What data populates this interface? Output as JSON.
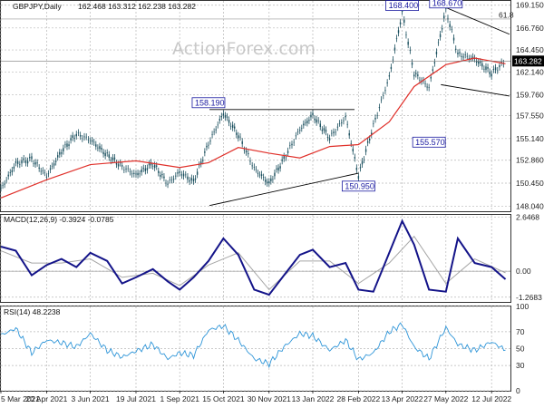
{
  "chart_data": [
    {
      "type": "line",
      "title": "GBPJPY,Daily",
      "ohlc": "162.468 163.312 162.238 163.282",
      "watermark": "ActionForex.com",
      "series": [
        {
          "x": [
            "2021-03-05",
            "2021-03-20",
            "2021-04-05",
            "2021-04-20",
            "2021-05-05",
            "2021-05-20",
            "2021-06-03",
            "2021-06-20",
            "2021-07-05",
            "2021-07-19",
            "2021-08-05",
            "2021-08-20",
            "2021-09-01",
            "2021-09-15",
            "2021-09-30",
            "2021-10-15",
            "2021-10-30",
            "2021-11-15",
            "2021-11-30",
            "2021-12-15",
            "2021-12-31",
            "2022-01-13",
            "2022-01-30",
            "2022-02-15",
            "2022-02-28",
            "2022-03-15",
            "2022-03-31",
            "2022-04-13",
            "2022-04-25",
            "2022-05-10",
            "2022-05-27",
            "2022-06-08",
            "2022-06-25",
            "2022-07-12",
            "2022-07-26"
          ],
          "values": [
            149.8,
            152.5,
            153.0,
            151.2,
            153.8,
            155.6,
            155.0,
            153.4,
            152.2,
            151.3,
            152.5,
            150.4,
            151.6,
            150.6,
            154.6,
            157.8,
            155.5,
            152.0,
            150.4,
            153.0,
            156.1,
            157.6,
            155.2,
            157.4,
            151.2,
            156.5,
            161.6,
            168.4,
            162.0,
            160.5,
            168.7,
            164.0,
            163.5,
            162.0,
            163.282
          ]
        },
        {
          "x": [
            "2021-03-05",
            "2021-04-20",
            "2021-06-03",
            "2021-07-19",
            "2021-09-01",
            "2021-09-30",
            "2021-10-30",
            "2021-11-30",
            "2021-12-31",
            "2022-01-30",
            "2022-02-28",
            "2022-03-31",
            "2022-04-25",
            "2022-05-27",
            "2022-06-25",
            "2022-07-26"
          ],
          "values": [
            148.9,
            150.8,
            152.4,
            152.8,
            152.1,
            152.6,
            154.2,
            153.6,
            153.1,
            154.3,
            154.5,
            156.9,
            160.6,
            162.9,
            163.6,
            163.0
          ]
        }
      ],
      "ylim": [
        147.5,
        169.6
      ],
      "yticks": [
        148.04,
        150.45,
        152.86,
        155.14,
        157.55,
        159.76,
        162.14,
        164.45,
        166.76,
        169.15
      ],
      "ytick_labels": [
        "148.040",
        "150.450",
        "152.860",
        "155.140",
        "157.550",
        "159.760",
        "162.140",
        "164.450",
        "166.760",
        "169.150"
      ],
      "current_price": 163.282,
      "current_price_label": "163.282",
      "fib_level": 167.7,
      "fib_label": "61.8",
      "trendlines": [
        {
          "x": [
            "2021-10-01",
            "2022-02-24"
          ],
          "values": [
            158.19,
            158.19
          ]
        },
        {
          "x": [
            "2021-10-01",
            "2022-02-28"
          ],
          "values": [
            148.1,
            151.5
          ]
        },
        {
          "x": [
            "2022-05-27",
            "2022-07-30"
          ],
          "values": [
            168.9,
            166.1
          ]
        },
        {
          "x": [
            "2022-05-22",
            "2022-07-30"
          ],
          "values": [
            160.8,
            159.6
          ]
        }
      ],
      "annotations": [
        {
          "text": "158.190",
          "x": "2021-09-30",
          "y": 158.19
        },
        {
          "text": "150.950",
          "x": "2022-02-28",
          "y": 150.95
        },
        {
          "text": "168.400",
          "x": "2022-04-13",
          "y": 168.4
        },
        {
          "text": "155.570",
          "x": "2022-05-10",
          "y": 155.57
        },
        {
          "text": "168.670",
          "x": "2022-05-27",
          "y": 168.67
        }
      ],
      "grid": true
    },
    {
      "type": "line",
      "title": "MACD(12,26,9) -0.3924 -0.0785",
      "series": [
        {
          "x": [
            "2021-03-05",
            "2021-03-20",
            "2021-04-05",
            "2021-04-20",
            "2021-05-05",
            "2021-05-20",
            "2021-06-03",
            "2021-06-20",
            "2021-07-05",
            "2021-07-19",
            "2021-08-05",
            "2021-08-20",
            "2021-09-01",
            "2021-09-15",
            "2021-09-30",
            "2021-10-15",
            "2021-10-30",
            "2021-11-15",
            "2021-11-30",
            "2021-12-15",
            "2021-12-31",
            "2022-01-13",
            "2022-01-30",
            "2022-02-15",
            "2022-02-28",
            "2022-03-15",
            "2022-03-31",
            "2022-04-13",
            "2022-04-25",
            "2022-05-10",
            "2022-05-27",
            "2022-06-08",
            "2022-06-25",
            "2022-07-12",
            "2022-07-26"
          ],
          "values": [
            1.2,
            1.0,
            -0.2,
            0.3,
            0.6,
            0.2,
            0.9,
            0.5,
            -0.6,
            -0.3,
            0.1,
            -0.5,
            -0.9,
            -0.3,
            0.5,
            1.6,
            0.8,
            -0.9,
            -1.15,
            -0.2,
            0.8,
            1.05,
            0.2,
            0.4,
            -0.9,
            -1.0,
            0.9,
            2.45,
            1.3,
            -0.9,
            -1.0,
            1.6,
            0.4,
            0.2,
            -0.3924
          ]
        },
        {
          "x": [
            "2021-03-05",
            "2021-04-05",
            "2021-05-05",
            "2021-06-03",
            "2021-07-05",
            "2021-08-05",
            "2021-09-01",
            "2021-09-30",
            "2021-10-30",
            "2021-11-30",
            "2021-12-31",
            "2022-01-30",
            "2022-02-28",
            "2022-03-31",
            "2022-04-25",
            "2022-05-27",
            "2022-06-25",
            "2022-07-26"
          ],
          "values": [
            1.0,
            0.4,
            0.4,
            0.6,
            -0.3,
            -0.1,
            -0.7,
            0.3,
            0.9,
            -0.9,
            0.5,
            0.5,
            -0.6,
            0.4,
            1.7,
            -0.6,
            0.6,
            -0.0785
          ]
        }
      ],
      "ylim": [
        -1.5,
        2.75
      ],
      "yticks": [
        2.6468,
        0.0,
        -1.2683
      ],
      "ytick_labels": [
        "2.6468",
        "0.00",
        "-1.2683"
      ],
      "grid": true
    },
    {
      "type": "line",
      "title": "RSI(14) 48.2238",
      "series": [
        {
          "x": [
            "2021-03-05",
            "2021-03-20",
            "2021-04-05",
            "2021-04-20",
            "2021-05-05",
            "2021-05-20",
            "2021-06-03",
            "2021-06-20",
            "2021-07-05",
            "2021-07-19",
            "2021-08-05",
            "2021-08-20",
            "2021-09-01",
            "2021-09-15",
            "2021-09-30",
            "2021-10-15",
            "2021-10-30",
            "2021-11-15",
            "2021-11-30",
            "2021-12-15",
            "2021-12-31",
            "2022-01-13",
            "2022-01-30",
            "2022-02-15",
            "2022-02-28",
            "2022-03-15",
            "2022-03-31",
            "2022-04-13",
            "2022-04-25",
            "2022-05-10",
            "2022-05-27",
            "2022-06-08",
            "2022-06-25",
            "2022-07-12",
            "2022-07-26"
          ],
          "values": [
            66,
            74,
            45,
            60,
            57,
            52,
            68,
            48,
            40,
            47,
            55,
            38,
            45,
            42,
            72,
            77,
            60,
            38,
            32,
            52,
            68,
            65,
            48,
            60,
            37,
            45,
            70,
            79,
            52,
            38,
            75,
            55,
            48,
            58,
            48.2238
          ]
        }
      ],
      "ylim": [
        0,
        100
      ],
      "yticks": [
        100,
        70,
        50,
        30,
        0
      ],
      "ytick_labels": [
        "100",
        "70",
        "50",
        "30",
        "0"
      ],
      "grid": true
    }
  ],
  "x_axis": {
    "start": "2021-03-05",
    "end": "2022-07-31",
    "ticks": [
      "2021-03-05",
      "2021-04-20",
      "2021-06-03",
      "2021-07-19",
      "2021-09-01",
      "2021-10-15",
      "2021-11-30",
      "2022-01-13",
      "2022-02-28",
      "2022-04-13",
      "2022-05-27",
      "2022-07-12"
    ],
    "tick_labels": [
      "5 Mar 2021",
      "20 Apr 2021",
      "3 Jun 2021",
      "19 Jul 2021",
      "1 Sep 2021",
      "15 Oct 2021",
      "30 Nov 2021",
      "13 Jan 2022",
      "28 Feb 2022",
      "13 Apr 2022",
      "27 May 2022",
      "12 Jul 2022"
    ]
  },
  "colors": {
    "price": "#1a4f5e",
    "ma": "#e0302a",
    "macd": "#141489",
    "signal": "#a6a6a6",
    "rsi": "#2e95d8",
    "trendline": "#000000",
    "label_box": "#1a1aa0",
    "price_box": "#000000"
  }
}
